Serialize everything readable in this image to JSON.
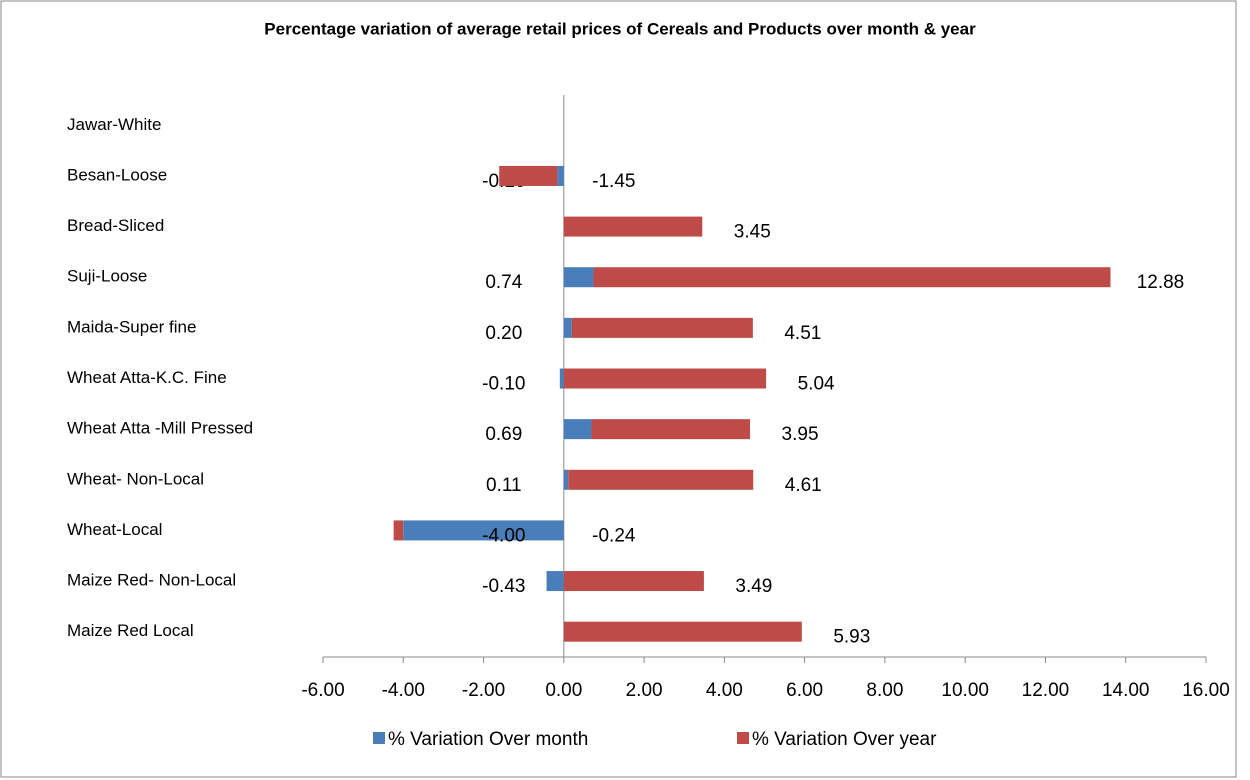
{
  "chart_data": {
    "type": "stacked-barh",
    "title": "Percentage variation of average retail prices of Cereals and Products over month & year",
    "categories": [
      "Jawar-White",
      "Besan-Loose",
      "Bread-Sliced",
      "Suji-Loose",
      "Maida-Super fine",
      "Wheat Atta-K.C. Fine",
      "Wheat Atta -Mill Pressed",
      "Wheat- Non-Local",
      "Wheat-Local",
      "Maize Red- Non-Local",
      "Maize Red Local"
    ],
    "series": [
      {
        "name": "% Variation Over month",
        "color": "#4a7ebb",
        "values": [
          null,
          -0.16,
          null,
          0.74,
          0.2,
          -0.1,
          0.69,
          0.11,
          -4.0,
          -0.43,
          null
        ],
        "value_labels": [
          null,
          "-0.16",
          null,
          "0.74",
          "0.20",
          "-0.10",
          "0.69",
          "0.11",
          "-4.00",
          "-0.43",
          null
        ]
      },
      {
        "name": "% Variation Over year",
        "color": "#be4b48",
        "values": [
          null,
          -1.45,
          3.45,
          12.88,
          4.51,
          5.04,
          3.95,
          4.61,
          -0.24,
          3.49,
          5.93
        ],
        "value_labels": [
          null,
          "-1.45",
          "3.45",
          "12.88",
          "4.51",
          "5.04",
          "3.95",
          "4.61",
          "-0.24",
          "3.49",
          "5.93"
        ]
      }
    ],
    "xlim": [
      -6,
      16
    ],
    "xticks": [
      {
        "value": -6,
        "label": "-6.00"
      },
      {
        "value": -4,
        "label": "-4.00"
      },
      {
        "value": -2,
        "label": "-2.00"
      },
      {
        "value": 0,
        "label": "0.00"
      },
      {
        "value": 2,
        "label": "2.00"
      },
      {
        "value": 4,
        "label": "4.00"
      },
      {
        "value": 6,
        "label": "6.00"
      },
      {
        "value": 8,
        "label": "8.00"
      },
      {
        "value": 10,
        "label": "10.00"
      },
      {
        "value": 12,
        "label": "12.00"
      },
      {
        "value": 14,
        "label": "14.00"
      },
      {
        "value": 16,
        "label": "16.00"
      }
    ],
    "grid": false,
    "legend": "bottom"
  }
}
